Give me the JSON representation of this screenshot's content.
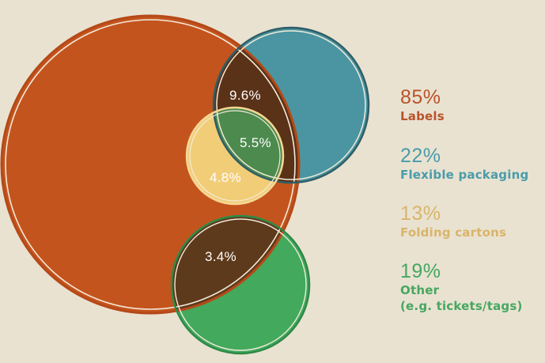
{
  "colors": {
    "background": "#e9e2d1",
    "labels": "#c4541d",
    "flexible": "#4a95a1",
    "folding": "#f2cd78",
    "other": "#42a95d",
    "dark_overlap": "#5a3217"
  },
  "legend": [
    {
      "id": "labels",
      "percent": "85%",
      "label": "Labels",
      "color": "#b9532a"
    },
    {
      "id": "flexible",
      "percent": "22%",
      "label": "Flexible packaging",
      "color": "#4a9caa"
    },
    {
      "id": "folding",
      "percent": "13%",
      "label": "Folding cartons",
      "color": "#d9b46a"
    },
    {
      "id": "other",
      "percent": "19%",
      "label": "Other",
      "label2": "(e.g. tickets/tags)",
      "color": "#47a760"
    }
  ],
  "overlaps": {
    "labels_flexible": "9.6%",
    "labels_flexible_folding": "5.5%",
    "labels_folding": "4.8%",
    "labels_other": "3.4%"
  }
}
